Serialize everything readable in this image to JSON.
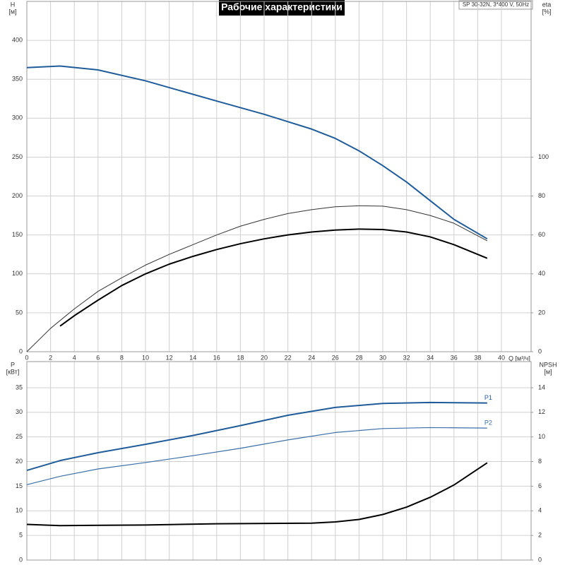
{
  "chart_data": [
    {
      "type": "line",
      "title": "Рабочие характеристики",
      "subtitle": "SP 30-32N, 3*400 V, 50Hz",
      "y_label": "H",
      "y_unit": "[м]",
      "y2_label": "eta",
      "y2_unit": "[%]",
      "x_label": "Q [м³/ч]",
      "xlim": [
        0,
        42.5
      ],
      "xticks": [
        0,
        2,
        4,
        6,
        8,
        10,
        12,
        14,
        16,
        18,
        20,
        22,
        24,
        26,
        28,
        30,
        32,
        34,
        36,
        38,
        40
      ],
      "ylim": [
        0,
        450
      ],
      "yticks": [
        0,
        50,
        100,
        150,
        200,
        250,
        300,
        350,
        400
      ],
      "y2lim": [
        0,
        180
      ],
      "y2ticks": [
        0,
        20,
        40,
        60,
        80,
        100
      ],
      "grid": true,
      "series": [
        {
          "color": "#1f5c99",
          "width": 2,
          "x": [
            0,
            2.8,
            6,
            10,
            13,
            16,
            20,
            24,
            26,
            28,
            30,
            32,
            34,
            36,
            38.8
          ],
          "values": [
            365,
            367,
            362,
            348,
            335,
            322,
            305,
            286,
            274,
            258,
            239,
            218,
            194,
            170,
            145
          ]
        },
        {
          "color": "#333333",
          "width": 1,
          "axis": "y2",
          "x": [
            0,
            2,
            4,
            6,
            8,
            10,
            12,
            14,
            16,
            18,
            20,
            22,
            24,
            26,
            28,
            30,
            32,
            34,
            36,
            38.8
          ],
          "values": [
            0,
            12,
            22,
            31,
            38,
            44.5,
            50,
            55,
            60,
            64.5,
            68,
            71,
            73,
            74.5,
            75,
            74.8,
            73,
            70,
            66,
            57
          ]
        },
        {
          "color": "#000000",
          "width": 2,
          "axis": "y2",
          "x": [
            2.8,
            4,
            6,
            8,
            10,
            12,
            14,
            16,
            18,
            20,
            22,
            24,
            26,
            28,
            30,
            32,
            34,
            36,
            38.8
          ],
          "values": [
            13.2,
            18.5,
            26.5,
            34,
            40,
            45,
            49,
            52.5,
            55.5,
            58,
            60,
            61.5,
            62.5,
            63,
            62.8,
            61.5,
            59,
            55,
            48
          ]
        }
      ]
    },
    {
      "type": "line",
      "y_label": "P",
      "y_unit": "[кВт]",
      "y2_label": "NPSH",
      "y2_unit": "[м]",
      "xlim": [
        0,
        42.5
      ],
      "ylim": [
        0,
        40.3
      ],
      "yticks": [
        0,
        5,
        10,
        15,
        20,
        25,
        30,
        35
      ],
      "y2lim": [
        0,
        16.12
      ],
      "y2ticks": [
        0,
        2,
        4,
        6,
        8,
        10,
        12,
        14
      ],
      "grid": true,
      "series": [
        {
          "name": "P1",
          "color": "#1f5c99",
          "width": 2,
          "x": [
            0,
            2.8,
            6,
            10,
            14,
            18,
            22,
            26,
            30,
            34,
            38.8
          ],
          "values": [
            18.2,
            20.2,
            21.8,
            23.5,
            25.3,
            27.3,
            29.4,
            31,
            31.8,
            32,
            31.9
          ]
        },
        {
          "name": "P2",
          "color": "#3a6fa8",
          "width": 1.2,
          "x": [
            0,
            2.8,
            6,
            10,
            14,
            18,
            22,
            26,
            30,
            34,
            38.8
          ],
          "values": [
            15.3,
            17,
            18.5,
            19.8,
            21.2,
            22.7,
            24.4,
            25.9,
            26.7,
            26.9,
            26.8
          ]
        },
        {
          "color": "#000000",
          "width": 2,
          "axis": "y2",
          "x": [
            0,
            2.8,
            10,
            16,
            24,
            26,
            28,
            30,
            32,
            34,
            36,
            38.8
          ],
          "values": [
            2.9,
            2.8,
            2.85,
            2.95,
            3.0,
            3.1,
            3.3,
            3.7,
            4.3,
            5.1,
            6.1,
            7.9
          ]
        }
      ]
    }
  ]
}
